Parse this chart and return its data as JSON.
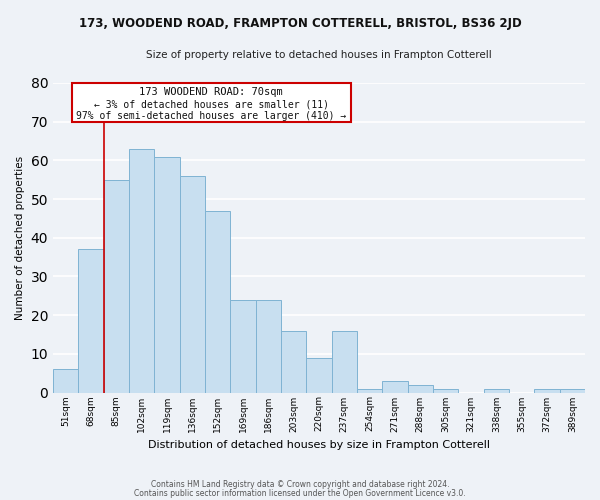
{
  "title": "173, WOODEND ROAD, FRAMPTON COTTERELL, BRISTOL, BS36 2JD",
  "subtitle": "Size of property relative to detached houses in Frampton Cotterell",
  "xlabel": "Distribution of detached houses by size in Frampton Cotterell",
  "ylabel": "Number of detached properties",
  "bar_color": "#c8dff0",
  "bar_edge_color": "#7fb3d3",
  "background_color": "#eef2f7",
  "grid_color": "#ffffff",
  "annotation_box_color": "#ffffff",
  "annotation_box_edge": "#cc0000",
  "reference_line_color": "#cc0000",
  "categories": [
    "51sqm",
    "68sqm",
    "85sqm",
    "102sqm",
    "119sqm",
    "136sqm",
    "152sqm",
    "169sqm",
    "186sqm",
    "203sqm",
    "220sqm",
    "237sqm",
    "254sqm",
    "271sqm",
    "288sqm",
    "305sqm",
    "321sqm",
    "338sqm",
    "355sqm",
    "372sqm",
    "389sqm"
  ],
  "values": [
    6,
    37,
    55,
    63,
    61,
    56,
    47,
    24,
    24,
    16,
    9,
    16,
    1,
    3,
    2,
    1,
    0,
    1,
    0,
    1,
    1
  ],
  "ylim": [
    0,
    80
  ],
  "yticks": [
    0,
    10,
    20,
    30,
    40,
    50,
    60,
    70,
    80
  ],
  "annotation_title": "173 WOODEND ROAD: 70sqm",
  "annotation_line1": "← 3% of detached houses are smaller (11)",
  "annotation_line2": "97% of semi-detached houses are larger (410) →",
  "footer1": "Contains HM Land Registry data © Crown copyright and database right 2024.",
  "footer2": "Contains public sector information licensed under the Open Government Licence v3.0."
}
